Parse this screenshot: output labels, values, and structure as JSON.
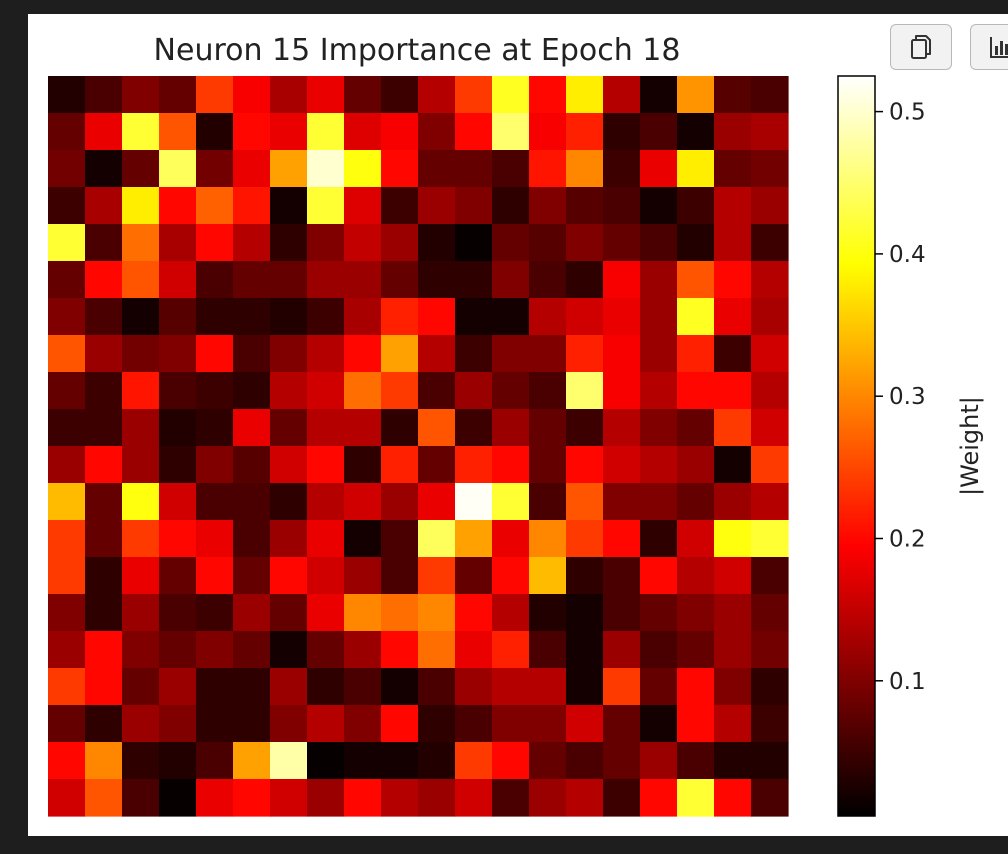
{
  "chart_data": {
    "type": "heatmap",
    "title": "Neuron 15 Importance at Epoch 18",
    "colormap": "hot",
    "colorbar": {
      "label": "|Weight|",
      "range": [
        0.005,
        0.525
      ],
      "ticks": [
        0.1,
        0.2,
        0.3,
        0.4,
        0.5
      ],
      "tick_labels": [
        "0.1",
        "0.2",
        "0.3",
        "0.4",
        "0.5"
      ]
    },
    "grid": false,
    "rows": 20,
    "cols": 20,
    "values": [
      [
        0.03,
        0.06,
        0.1,
        0.08,
        0.24,
        0.19,
        0.13,
        0.18,
        0.08,
        0.05,
        0.14,
        0.24,
        0.41,
        0.2,
        0.38,
        0.14,
        0.02,
        0.31,
        0.07,
        0.06
      ],
      [
        0.08,
        0.18,
        0.42,
        0.26,
        0.03,
        0.2,
        0.18,
        0.42,
        0.17,
        0.19,
        0.1,
        0.2,
        0.45,
        0.19,
        0.22,
        0.04,
        0.06,
        0.02,
        0.12,
        0.13
      ],
      [
        0.09,
        0.02,
        0.08,
        0.44,
        0.09,
        0.18,
        0.32,
        0.5,
        0.4,
        0.2,
        0.08,
        0.08,
        0.06,
        0.21,
        0.3,
        0.05,
        0.18,
        0.38,
        0.08,
        0.09
      ],
      [
        0.05,
        0.13,
        0.38,
        0.2,
        0.27,
        0.21,
        0.02,
        0.42,
        0.17,
        0.05,
        0.12,
        0.1,
        0.04,
        0.1,
        0.07,
        0.06,
        0.02,
        0.05,
        0.14,
        0.12
      ],
      [
        0.42,
        0.06,
        0.28,
        0.13,
        0.2,
        0.14,
        0.04,
        0.1,
        0.15,
        0.12,
        0.03,
        0.01,
        0.08,
        0.07,
        0.1,
        0.08,
        0.06,
        0.03,
        0.14,
        0.05
      ],
      [
        0.08,
        0.2,
        0.26,
        0.16,
        0.06,
        0.08,
        0.08,
        0.12,
        0.12,
        0.08,
        0.04,
        0.04,
        0.1,
        0.06,
        0.04,
        0.19,
        0.12,
        0.26,
        0.2,
        0.14
      ],
      [
        0.1,
        0.06,
        0.02,
        0.07,
        0.04,
        0.04,
        0.03,
        0.05,
        0.13,
        0.22,
        0.2,
        0.02,
        0.02,
        0.14,
        0.16,
        0.18,
        0.12,
        0.41,
        0.18,
        0.13
      ],
      [
        0.26,
        0.12,
        0.09,
        0.1,
        0.2,
        0.06,
        0.1,
        0.14,
        0.2,
        0.32,
        0.14,
        0.05,
        0.1,
        0.1,
        0.22,
        0.19,
        0.12,
        0.22,
        0.05,
        0.16
      ],
      [
        0.08,
        0.05,
        0.21,
        0.06,
        0.05,
        0.04,
        0.14,
        0.16,
        0.28,
        0.24,
        0.06,
        0.12,
        0.08,
        0.06,
        0.45,
        0.19,
        0.14,
        0.2,
        0.2,
        0.14
      ],
      [
        0.05,
        0.05,
        0.12,
        0.03,
        0.04,
        0.18,
        0.08,
        0.14,
        0.14,
        0.04,
        0.26,
        0.05,
        0.12,
        0.08,
        0.05,
        0.14,
        0.1,
        0.08,
        0.24,
        0.16
      ],
      [
        0.12,
        0.2,
        0.12,
        0.04,
        0.1,
        0.07,
        0.16,
        0.2,
        0.04,
        0.22,
        0.08,
        0.22,
        0.2,
        0.08,
        0.2,
        0.16,
        0.14,
        0.12,
        0.02,
        0.24
      ],
      [
        0.34,
        0.08,
        0.4,
        0.16,
        0.06,
        0.06,
        0.04,
        0.14,
        0.16,
        0.12,
        0.18,
        0.52,
        0.42,
        0.06,
        0.26,
        0.1,
        0.1,
        0.08,
        0.12,
        0.14
      ],
      [
        0.24,
        0.08,
        0.24,
        0.2,
        0.18,
        0.06,
        0.12,
        0.18,
        0.02,
        0.06,
        0.44,
        0.32,
        0.18,
        0.3,
        0.24,
        0.2,
        0.04,
        0.16,
        0.4,
        0.42
      ],
      [
        0.24,
        0.04,
        0.18,
        0.08,
        0.2,
        0.08,
        0.2,
        0.16,
        0.12,
        0.06,
        0.24,
        0.08,
        0.2,
        0.34,
        0.04,
        0.06,
        0.2,
        0.14,
        0.16,
        0.06
      ],
      [
        0.1,
        0.04,
        0.12,
        0.06,
        0.05,
        0.12,
        0.08,
        0.18,
        0.3,
        0.28,
        0.3,
        0.2,
        0.14,
        0.03,
        0.02,
        0.06,
        0.08,
        0.1,
        0.12,
        0.08
      ],
      [
        0.12,
        0.2,
        0.1,
        0.08,
        0.1,
        0.08,
        0.02,
        0.08,
        0.12,
        0.2,
        0.28,
        0.18,
        0.22,
        0.06,
        0.02,
        0.12,
        0.06,
        0.08,
        0.12,
        0.09
      ],
      [
        0.24,
        0.2,
        0.08,
        0.12,
        0.04,
        0.04,
        0.12,
        0.04,
        0.06,
        0.02,
        0.06,
        0.12,
        0.14,
        0.14,
        0.02,
        0.24,
        0.08,
        0.2,
        0.1,
        0.04
      ],
      [
        0.08,
        0.04,
        0.12,
        0.1,
        0.04,
        0.04,
        0.1,
        0.14,
        0.1,
        0.2,
        0.04,
        0.06,
        0.1,
        0.1,
        0.16,
        0.08,
        0.02,
        0.2,
        0.14,
        0.05
      ],
      [
        0.2,
        0.3,
        0.04,
        0.03,
        0.06,
        0.32,
        0.48,
        0.01,
        0.02,
        0.02,
        0.03,
        0.24,
        0.2,
        0.08,
        0.06,
        0.08,
        0.12,
        0.06,
        0.03,
        0.03
      ],
      [
        0.16,
        0.26,
        0.06,
        0.01,
        0.18,
        0.2,
        0.16,
        0.12,
        0.2,
        0.14,
        0.12,
        0.16,
        0.06,
        0.12,
        0.14,
        0.05,
        0.2,
        0.42,
        0.2,
        0.06
      ]
    ]
  },
  "toolbar": {
    "copy_icon": "copy-icon",
    "plot_icon": "bar-chart-icon"
  }
}
